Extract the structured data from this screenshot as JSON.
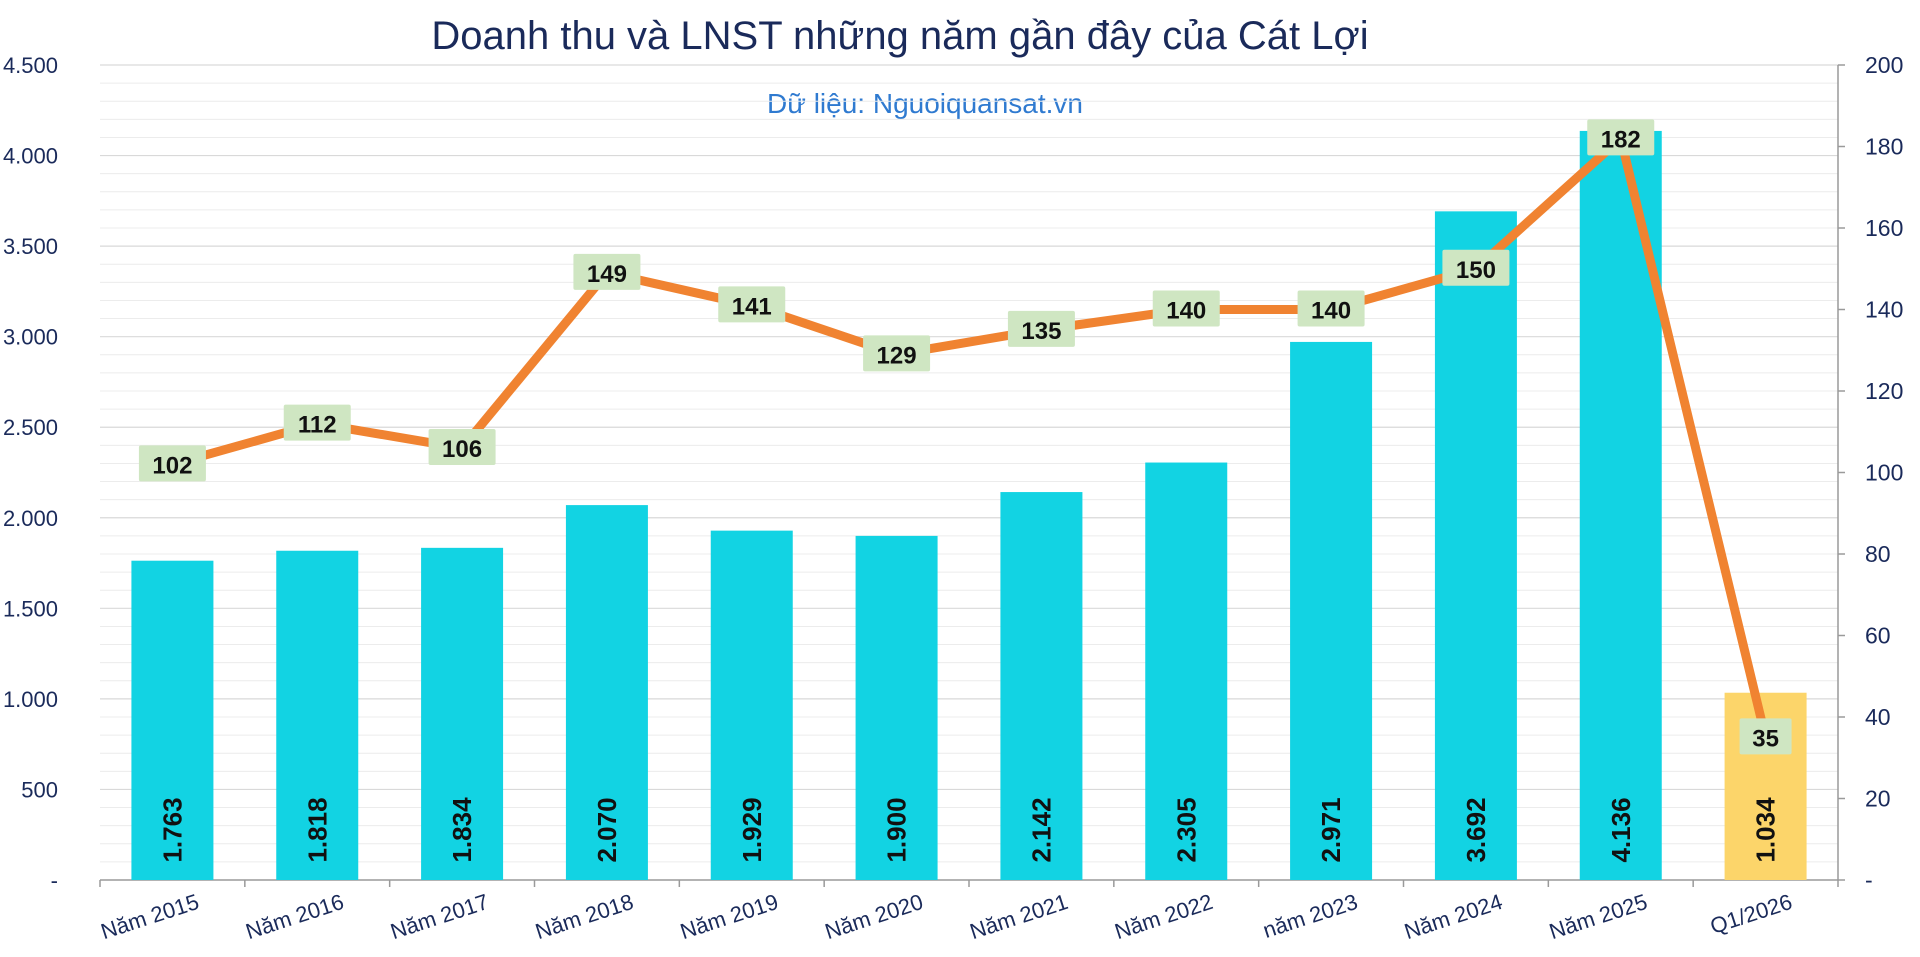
{
  "chart_data": {
    "type": "bar",
    "title": "Doanh thu và LNST những năm gần đây của Cát Lợi",
    "subtitle": "Dữ liệu: Nguoiquansat.vn",
    "categories": [
      "Năm 2015",
      "Năm 2016",
      "Năm 2017",
      "Năm 2018",
      "Năm 2019",
      "Năm 2020",
      "Năm 2021",
      "Năm 2022",
      "năm 2023",
      "Năm 2024",
      "Năm 2025",
      "Q1/2026"
    ],
    "series": [
      {
        "type": "bar",
        "axis": "left",
        "values": [
          1763,
          1818,
          1834,
          2070,
          1929,
          1900,
          2142,
          2305,
          2971,
          3692,
          4136,
          1034
        ],
        "labels": [
          "1.763",
          "1.818",
          "1.834",
          "2.070",
          "1.929",
          "1.900",
          "2.142",
          "2.305",
          "2.971",
          "3.692",
          "4.136",
          "1.034"
        ],
        "color": "#12d3e3",
        "highlight_color": "#fcd56a",
        "highlight_index": 11
      },
      {
        "type": "line",
        "axis": "right",
        "values": [
          102,
          112,
          106,
          149,
          141,
          129,
          135,
          140,
          140,
          150,
          182,
          35
        ],
        "labels": [
          "102",
          "112",
          "106",
          "149",
          "141",
          "129",
          "135",
          "140",
          "140",
          "150",
          "182",
          "35"
        ],
        "color": "#f08331"
      }
    ],
    "y_left": {
      "ylim": [
        0,
        4500
      ],
      "ticks": [
        0,
        500,
        1000,
        1500,
        2000,
        2500,
        3000,
        3500,
        4000,
        4500
      ],
      "tick_labels": [
        "-",
        "500",
        "1.000",
        "1.500",
        "2.000",
        "2.500",
        "3.000",
        "3.500",
        "4.000",
        "4.500"
      ]
    },
    "y_right": {
      "ylim": [
        0,
        200
      ],
      "ticks": [
        0,
        20,
        40,
        60,
        80,
        100,
        120,
        140,
        160,
        180,
        200
      ],
      "tick_labels": [
        "-",
        "20",
        "40",
        "60",
        "80",
        "100",
        "120",
        "140",
        "160",
        "180",
        "200"
      ]
    },
    "grid": true,
    "legend": "none",
    "colors": {
      "axis_text": "#1a2a5a",
      "gridline": "#d9d9d9",
      "label_box": "#cfe6c2"
    }
  }
}
